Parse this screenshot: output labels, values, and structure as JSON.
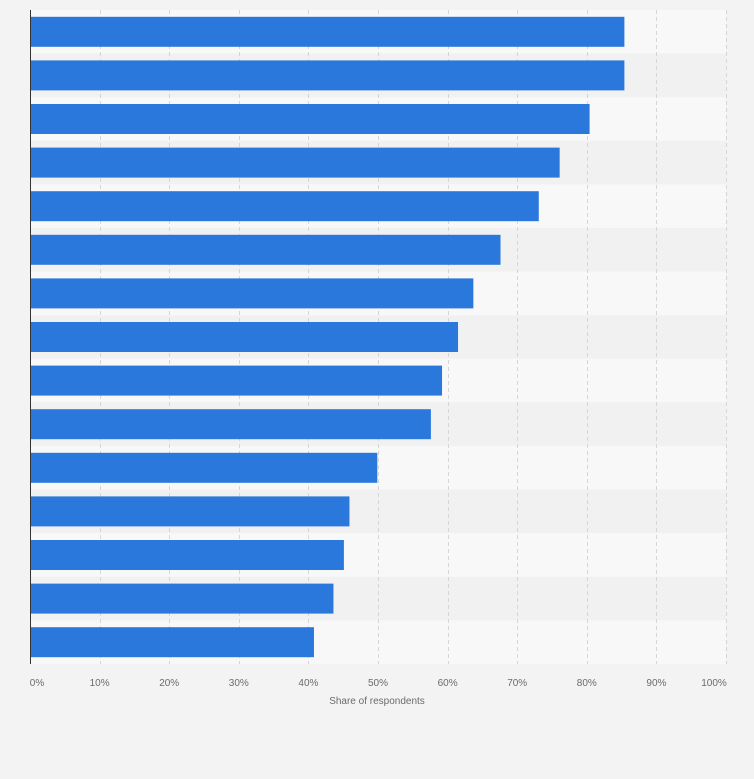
{
  "chart_data": {
    "type": "bar",
    "orientation": "horizontal",
    "categories": [
      "",
      "",
      "",
      "",
      "",
      "",
      "",
      "",
      "",
      "",
      "",
      "",
      "",
      "",
      ""
    ],
    "values": [
      85.4,
      85.4,
      80.4,
      76.1,
      73.1,
      67.6,
      63.7,
      61.5,
      59.2,
      57.6,
      49.9,
      45.9,
      45.1,
      43.6,
      40.8
    ],
    "xlabel": "Share of respondents",
    "ylabel": "",
    "xlim": [
      0,
      100
    ],
    "x_ticks": [
      "0%",
      "10%",
      "20%",
      "30%",
      "40%",
      "50%",
      "60%",
      "70%",
      "80%",
      "90%",
      "100%"
    ],
    "grid": true,
    "legend": "none",
    "bar_color": "#2b78dc",
    "background_color": "#f3f3f3"
  }
}
